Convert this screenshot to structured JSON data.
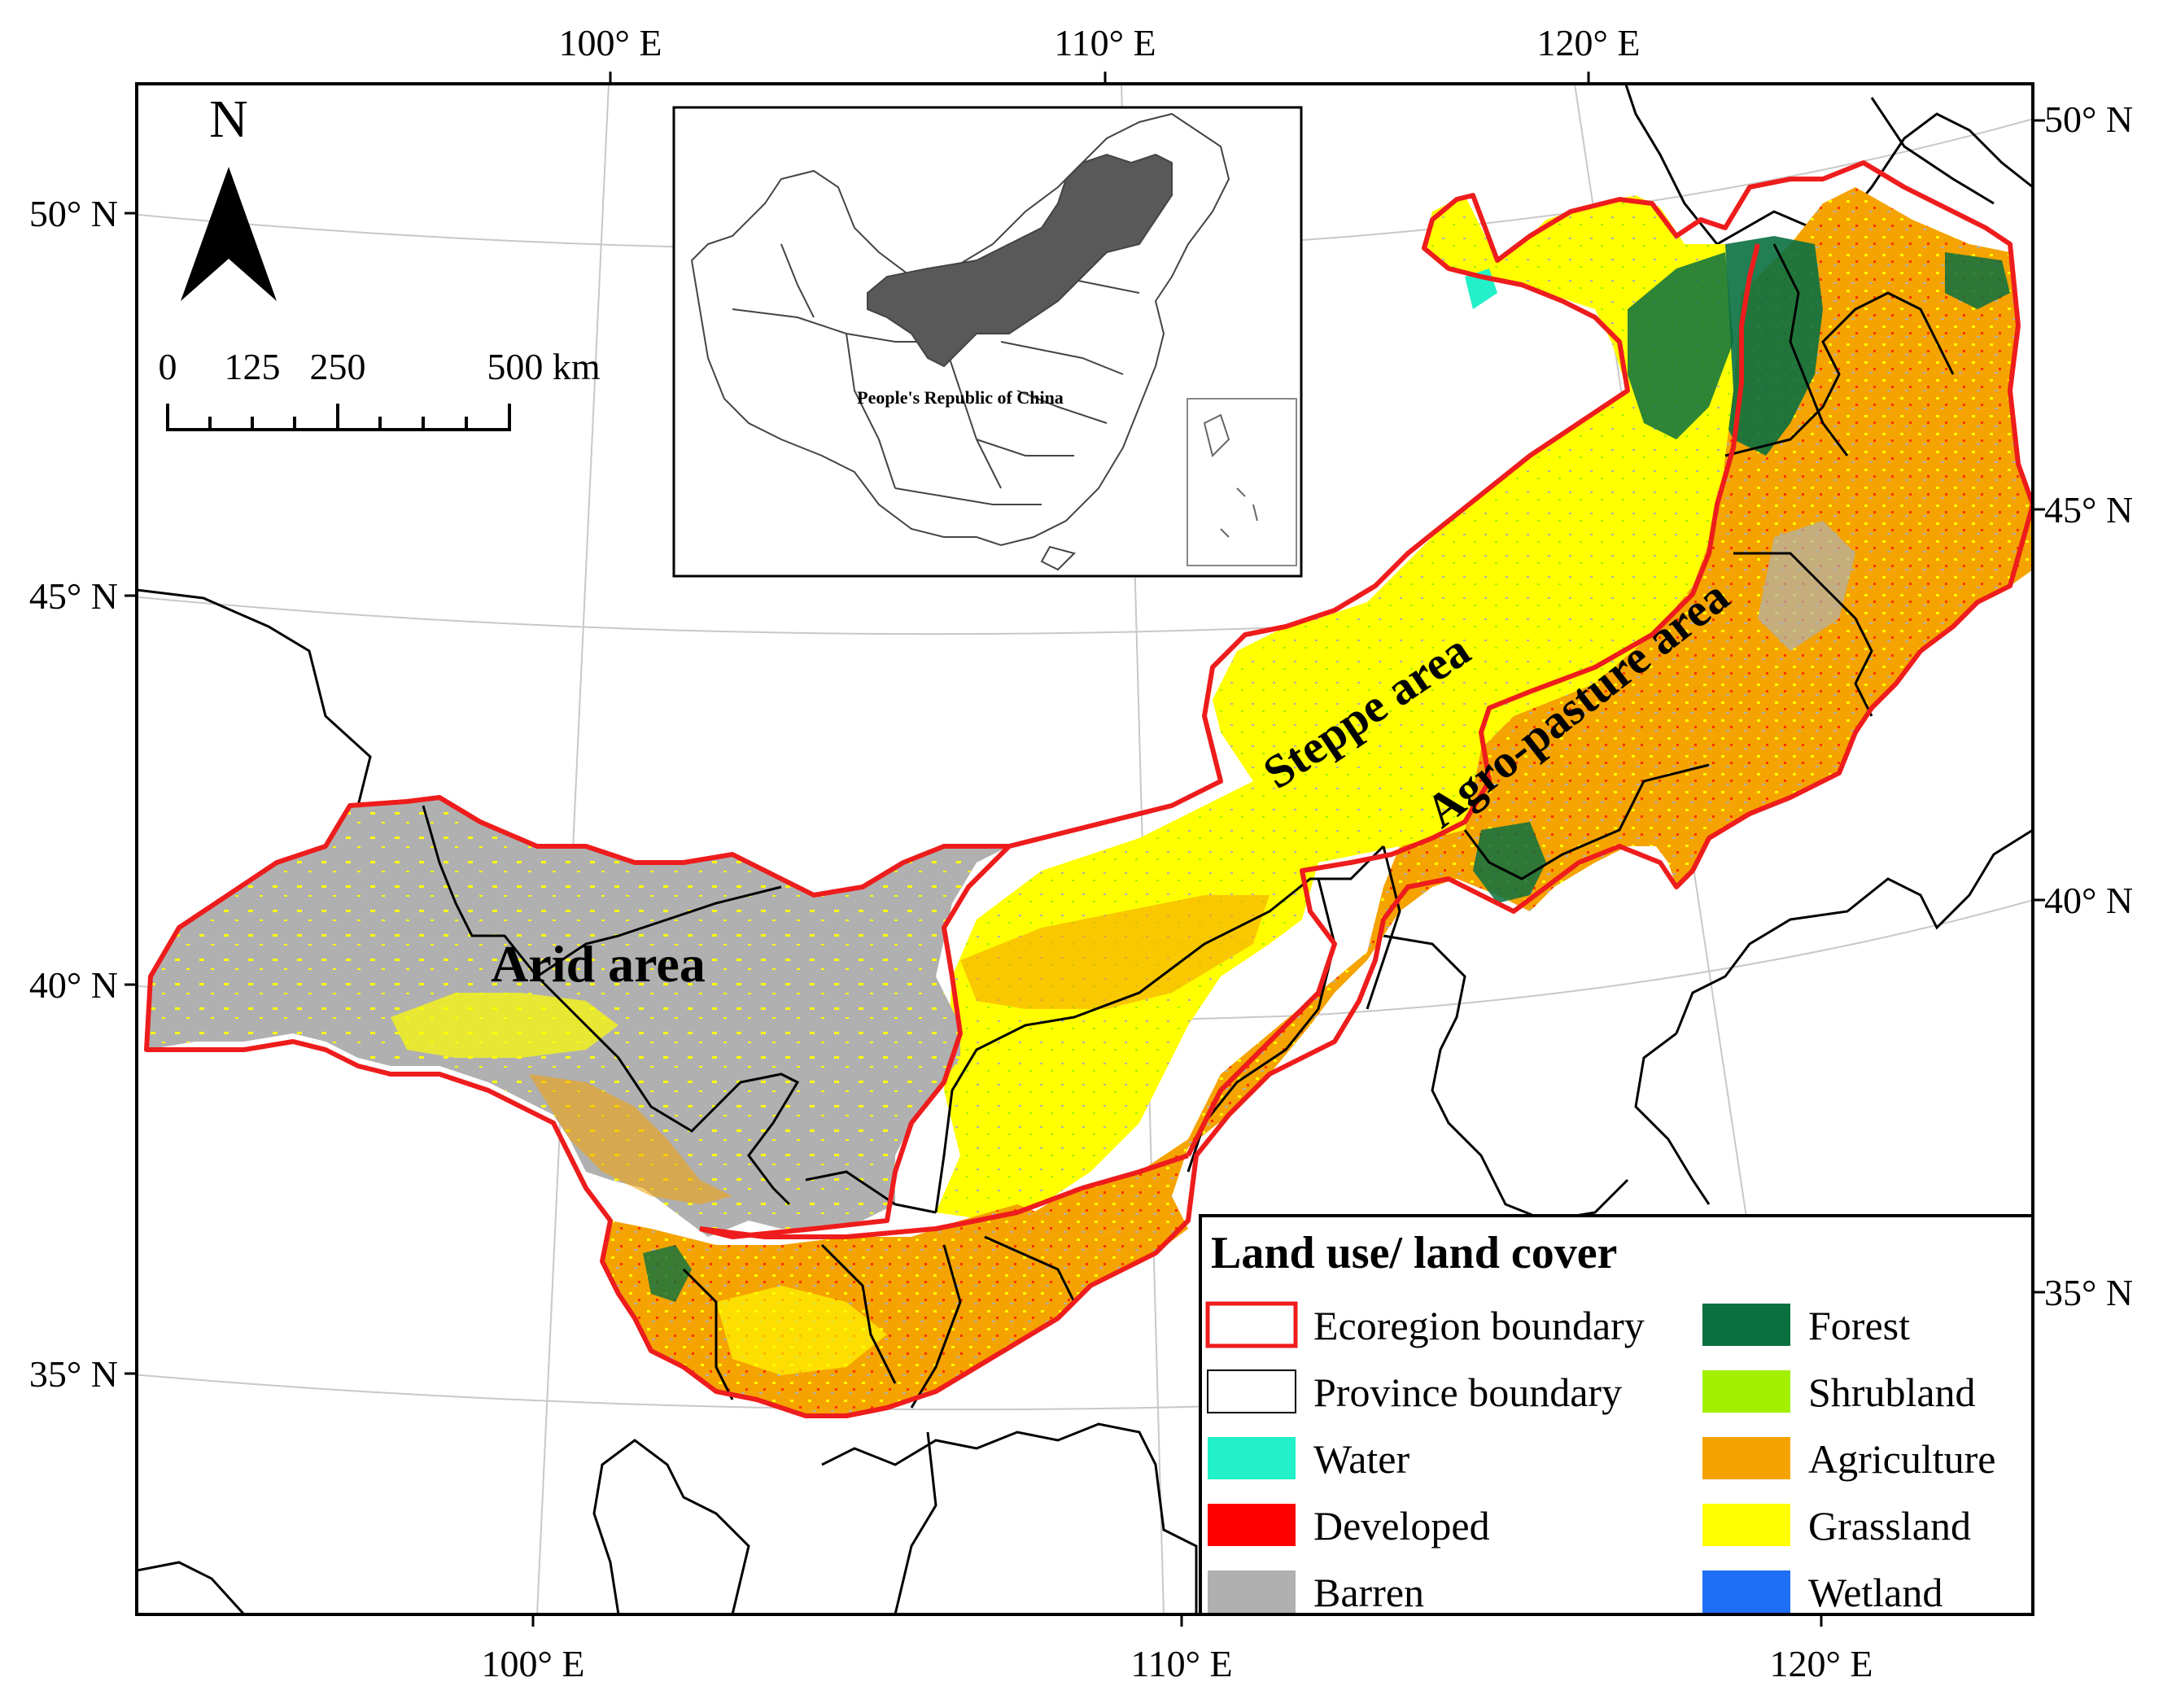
{
  "map": {
    "coord_labels": {
      "top": [
        "100° E",
        "110° E",
        "120° E"
      ],
      "bottom": [
        "100° E",
        "110° E",
        "120° E"
      ],
      "left": [
        "50° N",
        "45° N",
        "40° N",
        "35° N"
      ],
      "right": [
        "50° N",
        "45° N",
        "40° N",
        "35° N"
      ]
    },
    "north_arrow": {
      "label": "N"
    },
    "scale_bar": {
      "labels": [
        "0",
        "125",
        "250",
        "500 km"
      ]
    },
    "region_labels": {
      "arid": "Arid area",
      "steppe": "Steppe area",
      "agro": "Agro-pasture area"
    },
    "inset": {
      "label": "People's Republic of China"
    },
    "colors": {
      "ecoregion_boundary": "#ee1c1c",
      "province_boundary": "#000000",
      "water": "#21f0c8",
      "developed": "#ff0000",
      "barren": "#b0b0b0",
      "forest": "#0a7040",
      "shrubland": "#a2f000",
      "agriculture": "#f5a300",
      "grassland": "#ffff00",
      "wetland": "#1f6ff5"
    }
  },
  "legend": {
    "title": "Land use/ land cover",
    "items": [
      {
        "label": "Ecoregion boundary",
        "type": "ecoregion",
        "color": "#ee1c1c"
      },
      {
        "label": "Province boundary",
        "type": "province",
        "color": "#000000"
      },
      {
        "label": "Water",
        "type": "fill",
        "color": "#21f0c8"
      },
      {
        "label": "Developed",
        "type": "fill",
        "color": "#ff0000"
      },
      {
        "label": "Barren",
        "type": "fill",
        "color": "#b0b0b0"
      },
      {
        "label": "Forest",
        "type": "fill",
        "color": "#0a7040"
      },
      {
        "label": "Shrubland",
        "type": "fill",
        "color": "#a2f000"
      },
      {
        "label": "Agriculture",
        "type": "fill",
        "color": "#f5a300"
      },
      {
        "label": "Grassland",
        "type": "fill",
        "color": "#ffff00"
      },
      {
        "label": "Wetland",
        "type": "fill",
        "color": "#1f6ff5"
      }
    ]
  }
}
